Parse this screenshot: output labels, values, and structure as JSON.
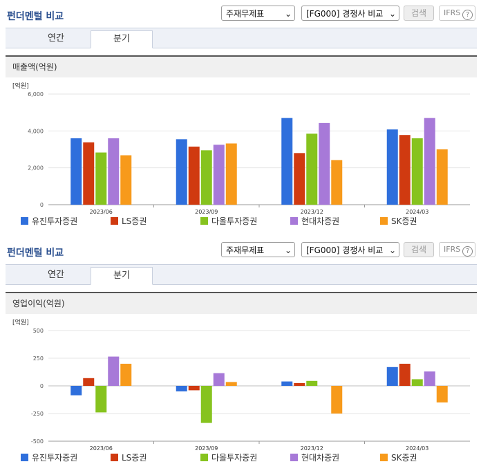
{
  "sections": [
    {
      "title": "펀더멘털 비교",
      "statement_select": "주재무제표",
      "compare_select": "[FG000] 경쟁사 비교",
      "search_button": "검색",
      "ifrs_label": "IFRS",
      "help_icon": "?",
      "tabs": [
        "연간",
        "분기"
      ],
      "active_tab": 1,
      "metric_title": "매출액(억원)",
      "unit": "[억원]"
    },
    {
      "title": "펀더멘털 비교",
      "statement_select": "주재무제표",
      "compare_select": "[FG000] 경쟁사 비교",
      "search_button": "검색",
      "ifrs_label": "IFRS",
      "help_icon": "?",
      "tabs": [
        "연간",
        "분기"
      ],
      "active_tab": 1,
      "metric_title": "영업이익(억원)",
      "unit": "[억원]"
    }
  ],
  "colors": {
    "유진투자증권": "#2f6fdc",
    "LS증권": "#d03a10",
    "다올투자증권": "#86c31e",
    "현대차증권": "#a779d8",
    "SK증권": "#f79a1b"
  },
  "chart_data": [
    {
      "type": "bar",
      "title": "매출액(억원)",
      "ylabel": "[억원]",
      "ylim": [
        0,
        6000
      ],
      "yticks": [
        0,
        2000,
        4000,
        6000
      ],
      "ytick_labels": [
        "0",
        "2,000",
        "4,000",
        "6,000"
      ],
      "grid": true,
      "legend": "bottom",
      "categories": [
        "2023/06",
        "2023/09",
        "2023/12",
        "2024/03"
      ],
      "series": [
        {
          "name": "유진투자증권",
          "values": [
            3600,
            3550,
            4700,
            4080
          ]
        },
        {
          "name": "LS증권",
          "values": [
            3380,
            3150,
            2800,
            3780
          ]
        },
        {
          "name": "다올투자증권",
          "values": [
            2830,
            2950,
            3850,
            3600
          ]
        },
        {
          "name": "현대차증권",
          "values": [
            3600,
            3250,
            4430,
            4700
          ]
        },
        {
          "name": "SK증권",
          "values": [
            2680,
            3320,
            2420,
            3000
          ]
        }
      ]
    },
    {
      "type": "bar",
      "title": "영업이익(억원)",
      "ylabel": "[억원]",
      "ylim": [
        -500,
        500
      ],
      "yticks": [
        -500,
        -250,
        0,
        250,
        500
      ],
      "ytick_labels": [
        "-500",
        "-250",
        "0",
        "250",
        "500"
      ],
      "grid": true,
      "legend": "bottom",
      "categories": [
        "2023/06",
        "2023/09",
        "2023/12",
        "2024/03"
      ],
      "series": [
        {
          "name": "유진투자증권",
          "values": [
            -85,
            -50,
            40,
            170
          ]
        },
        {
          "name": "LS증권",
          "values": [
            70,
            -40,
            25,
            200
          ]
        },
        {
          "name": "다올투자증권",
          "values": [
            -240,
            -335,
            45,
            60
          ]
        },
        {
          "name": "현대차증권",
          "values": [
            265,
            115,
            0,
            130
          ]
        },
        {
          "name": "SK증권",
          "values": [
            200,
            35,
            -250,
            -150
          ]
        }
      ]
    }
  ]
}
